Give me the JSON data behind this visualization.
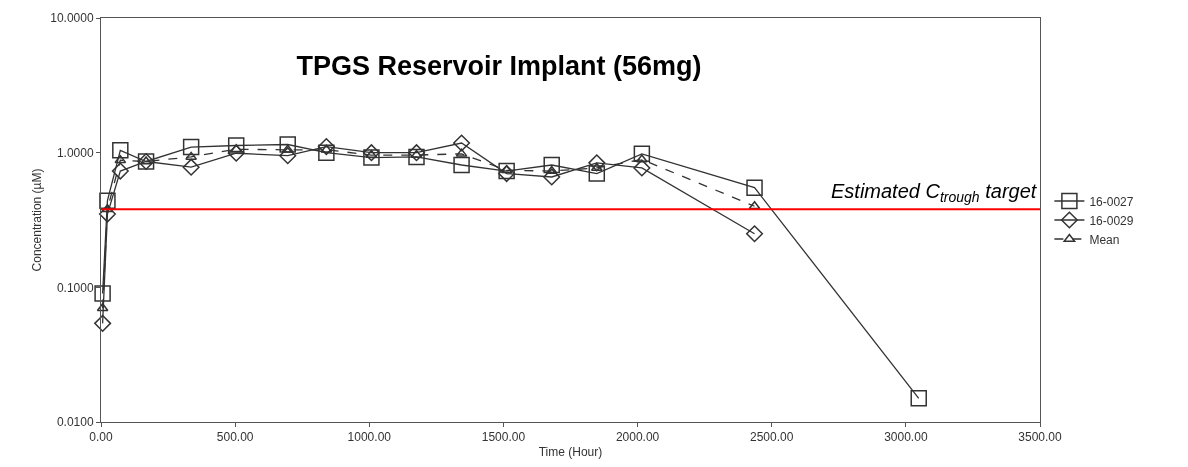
{
  "chart_data": {
    "type": "line",
    "title": "TPGS Reservoir Implant (56mg)",
    "xlabel": "Time (Hour)",
    "ylabel": "Concentration (µM)",
    "x": [
      6,
      24,
      72,
      168,
      336,
      504,
      696,
      840,
      1008,
      1176,
      1344,
      1512,
      1680,
      1848,
      2016,
      2436,
      3048
    ],
    "series": [
      {
        "name": "16-0027",
        "color": "#333333",
        "marker": "square",
        "line_style": "solid",
        "values": [
          0.09,
          0.44,
          1.04,
          0.86,
          1.1,
          1.13,
          1.15,
          1.0,
          0.92,
          0.93,
          0.81,
          0.73,
          0.81,
          0.7,
          0.98,
          0.55,
          0.015
        ]
      },
      {
        "name": "16-0029",
        "color": "#333333",
        "marker": "diamond",
        "line_style": "solid",
        "values": [
          0.054,
          0.35,
          0.73,
          0.86,
          0.78,
          0.99,
          0.95,
          1.11,
          1.0,
          1.0,
          1.18,
          0.7,
          0.66,
          0.84,
          0.77,
          0.25,
          null
        ]
      },
      {
        "name": "Mean",
        "color": "#333333",
        "marker": "triangle",
        "line_style": "dashed",
        "values": [
          0.07,
          0.38,
          0.88,
          0.86,
          0.93,
          1.06,
          1.05,
          1.05,
          0.96,
          0.96,
          0.98,
          0.74,
          0.73,
          0.77,
          0.89,
          0.4,
          null
        ]
      }
    ],
    "log": "y",
    "grid": false,
    "legend": "right",
    "xlim": [
      0,
      3500
    ],
    "xticks": [
      {
        "value": 0,
        "label": "0.00"
      },
      {
        "value": 500,
        "label": "500.00"
      },
      {
        "value": 1000,
        "label": "1000.00"
      },
      {
        "value": 1500,
        "label": "1500.00"
      },
      {
        "value": 2000,
        "label": "2000.00"
      },
      {
        "value": 2500,
        "label": "2500.00"
      },
      {
        "value": 3000,
        "label": "3000.00"
      },
      {
        "value": 3500,
        "label": "3500.00"
      }
    ],
    "ylim": [
      0.01,
      10
    ],
    "yticks": [
      {
        "value": 0.01,
        "label": "0.0100"
      },
      {
        "value": 0.1,
        "label": "0.1000"
      },
      {
        "value": 1,
        "label": "1.0000"
      },
      {
        "value": 10,
        "label": "10.0000"
      }
    ],
    "ref_lines": [
      {
        "axis": "y",
        "value": 0.38,
        "label": "Estimated C$_{trough}$ target",
        "color": "#ff0000",
        "line_style": "solid"
      }
    ]
  }
}
